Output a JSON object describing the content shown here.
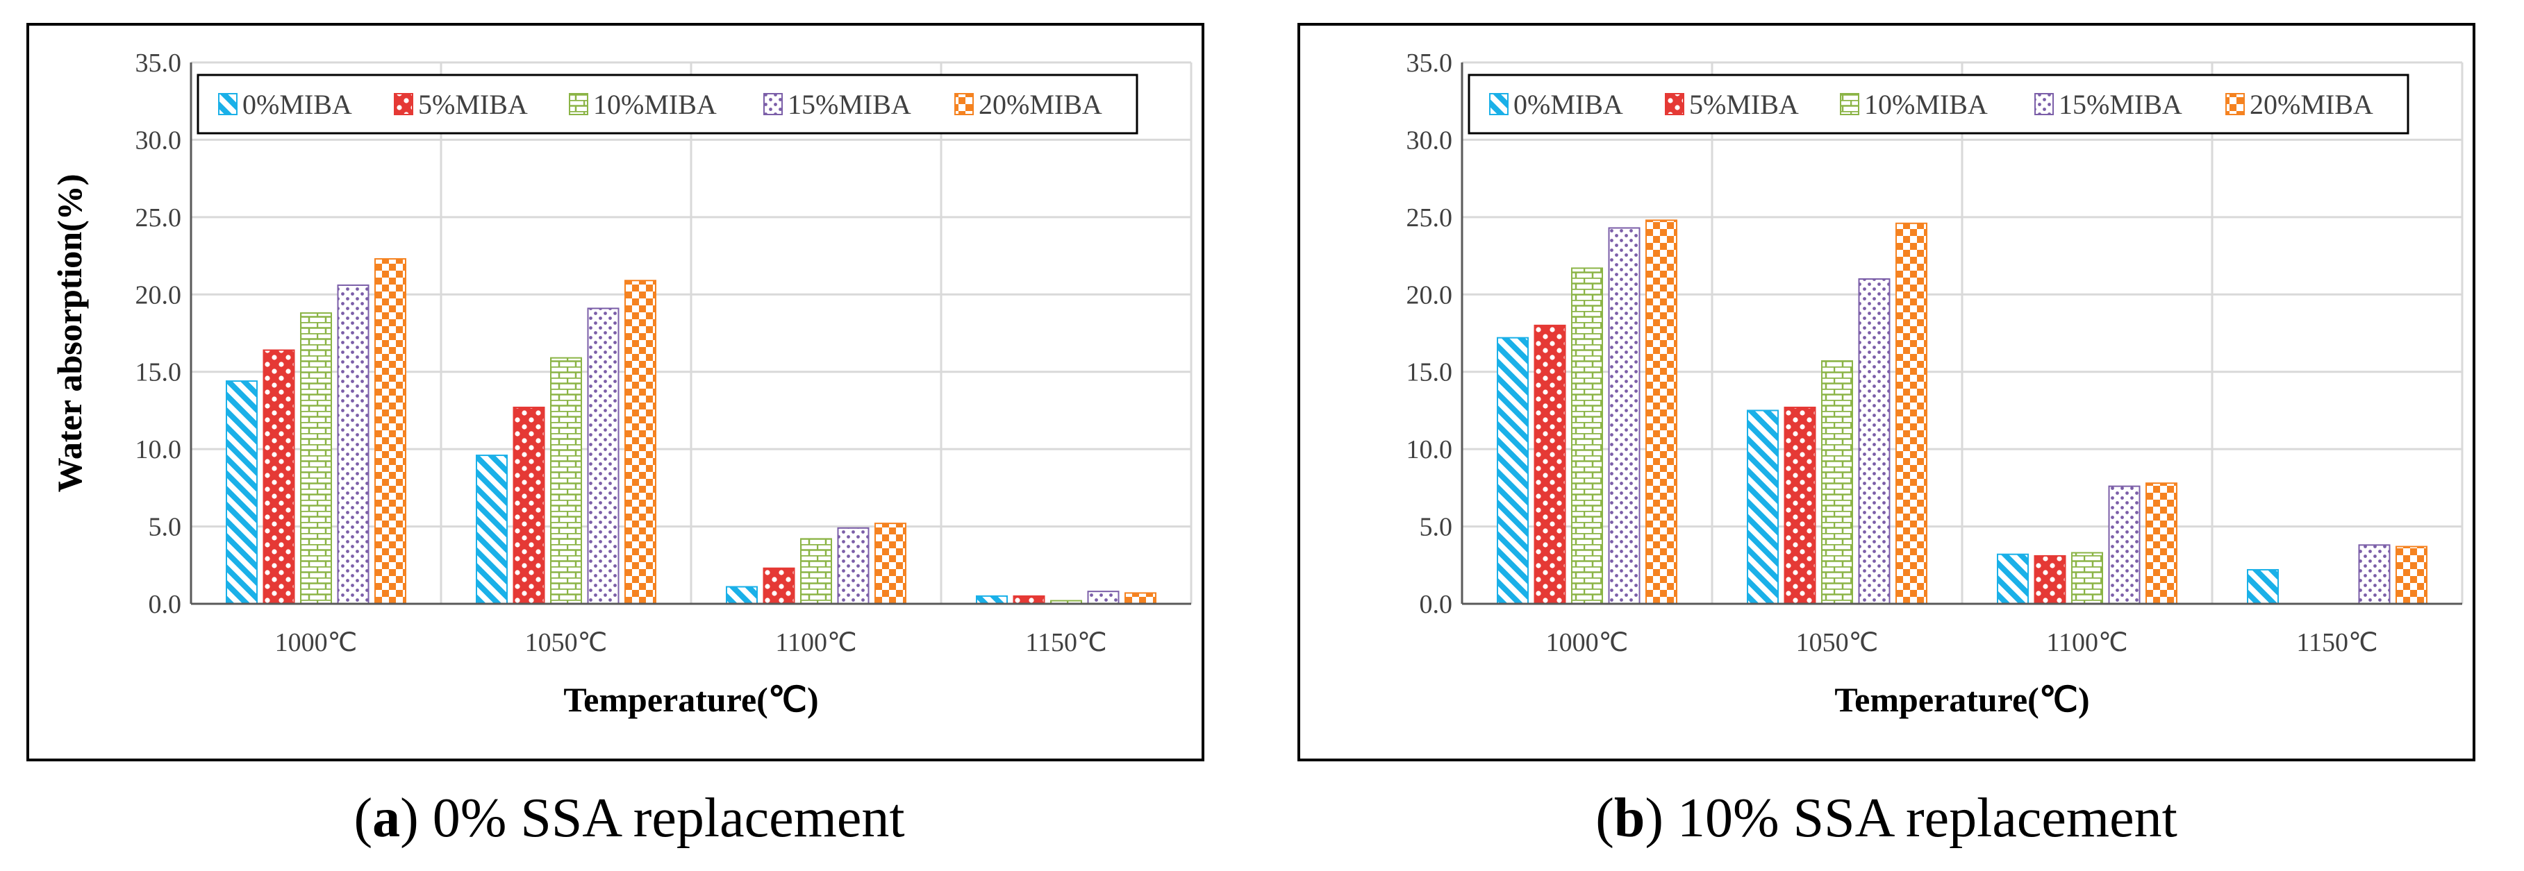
{
  "chart_data": [
    {
      "type": "bar",
      "caption_letter": "a",
      "caption_text": " 0% SSA replacement",
      "xlabel": "Temperature(℃)",
      "ylabel": "Water absorption(%)",
      "ylim": [
        0,
        35
      ],
      "yticks": [
        "0.0",
        "5.0",
        "10.0",
        "15.0",
        "20.0",
        "25.0",
        "30.0",
        "35.0"
      ],
      "categories": [
        "1000℃",
        "1050℃",
        "1100℃",
        "1150℃"
      ],
      "grid": true,
      "legend_position": "top",
      "series": [
        {
          "name": "0%MIBA",
          "values": [
            14.4,
            9.6,
            1.1,
            0.5
          ]
        },
        {
          "name": "5%MIBA",
          "values": [
            16.4,
            12.7,
            2.3,
            0.5
          ]
        },
        {
          "name": "10%MIBA",
          "values": [
            18.8,
            15.9,
            4.2,
            0.2
          ]
        },
        {
          "name": "15%MIBA",
          "values": [
            20.6,
            19.1,
            4.9,
            0.8
          ]
        },
        {
          "name": "20%MIBA",
          "values": [
            22.3,
            20.9,
            5.2,
            0.7
          ]
        }
      ]
    },
    {
      "type": "bar",
      "caption_letter": "b",
      "caption_text": " 10% SSA replacement",
      "xlabel": "Temperature(℃)",
      "ylabel": "Water absorption(%)",
      "ylim": [
        0,
        35
      ],
      "yticks": [
        "0.0",
        "5.0",
        "10.0",
        "15.0",
        "20.0",
        "25.0",
        "30.0",
        "35.0"
      ],
      "categories": [
        "1000℃",
        "1050℃",
        "1100℃",
        "1150℃"
      ],
      "grid": true,
      "legend_position": "top",
      "series": [
        {
          "name": "0%MIBA",
          "values": [
            17.2,
            12.5,
            3.2,
            2.2
          ]
        },
        {
          "name": "5%MIBA",
          "values": [
            18.0,
            12.7,
            3.1,
            0
          ]
        },
        {
          "name": "10%MIBA",
          "values": [
            21.7,
            15.7,
            3.3,
            0
          ]
        },
        {
          "name": "15%MIBA",
          "values": [
            24.3,
            21.0,
            7.6,
            3.8
          ]
        },
        {
          "name": "20%MIBA",
          "values": [
            24.8,
            24.6,
            7.8,
            3.7
          ]
        }
      ]
    }
  ],
  "colors": {
    "series_stroke": [
      "#1ab0e8",
      "#e53935",
      "#8bb446",
      "#7b5ea8",
      "#f58220"
    ],
    "gridline": "#d9d9d9",
    "frame": "#000000"
  }
}
